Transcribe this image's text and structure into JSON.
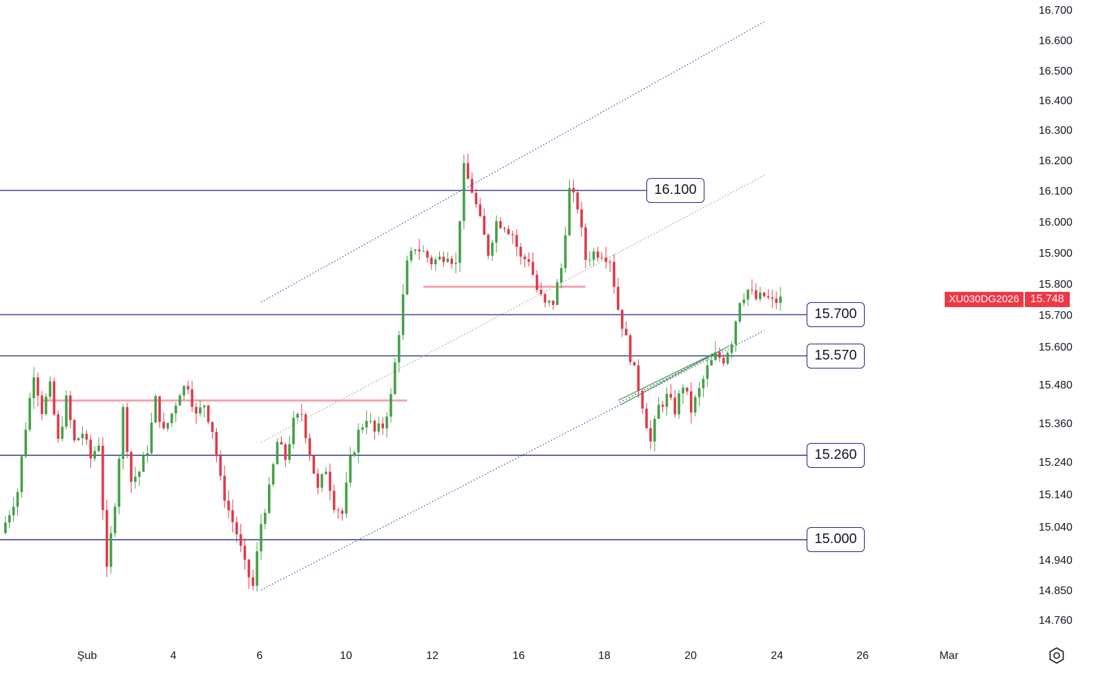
{
  "chart_data": {
    "type": "candlestick",
    "symbol": "XU030DG2026",
    "last_price": "15.748",
    "y_axis": {
      "ticks": [
        "16.700",
        "16.600",
        "16.500",
        "16.400",
        "16.300",
        "16.200",
        "16.100",
        "16.000",
        "15.900",
        "15.800",
        "15.700",
        "15.600",
        "15.480",
        "15.360",
        "15.240",
        "15.140",
        "15.040",
        "14.940",
        "14.850",
        "14.760"
      ]
    },
    "x_axis": {
      "ticks": [
        "Şub",
        "4",
        "6",
        "10",
        "12",
        "16",
        "18",
        "20",
        "24",
        "26",
        "Mar"
      ]
    },
    "levels": [
      {
        "label": "16.100",
        "value": 16100
      },
      {
        "label": "15.700",
        "value": 15700
      },
      {
        "label": "15.570",
        "value": 15570
      },
      {
        "label": "15.260",
        "value": 15260
      },
      {
        "label": "15.000",
        "value": 15000
      }
    ],
    "price_path": [
      [
        0,
        15020
      ],
      [
        2,
        15150
      ],
      [
        3,
        15350
      ],
      [
        4,
        15520
      ],
      [
        5,
        15400
      ],
      [
        6,
        15470
      ],
      [
        7,
        15300
      ],
      [
        8,
        15430
      ],
      [
        9,
        15300
      ],
      [
        10,
        15330
      ],
      [
        11,
        15250
      ],
      [
        12,
        15300
      ],
      [
        13,
        14900
      ],
      [
        14,
        15120
      ],
      [
        15,
        15400
      ],
      [
        16,
        15180
      ],
      [
        17,
        15210
      ],
      [
        18,
        15280
      ],
      [
        19,
        15430
      ],
      [
        20,
        15330
      ],
      [
        21,
        15390
      ],
      [
        22,
        15460
      ],
      [
        23,
        15480
      ],
      [
        24,
        15380
      ],
      [
        25,
        15420
      ],
      [
        26,
        15340
      ],
      [
        27,
        15180
      ],
      [
        28,
        15090
      ],
      [
        29,
        15020
      ],
      [
        30,
        14920
      ],
      [
        31,
        14860
      ],
      [
        32,
        15050
      ],
      [
        33,
        15150
      ],
      [
        34,
        15300
      ],
      [
        35,
        15250
      ],
      [
        36,
        15360
      ],
      [
        37,
        15390
      ],
      [
        38,
        15270
      ],
      [
        39,
        15150
      ],
      [
        40,
        15220
      ],
      [
        41,
        15110
      ],
      [
        42,
        15080
      ],
      [
        43,
        15240
      ],
      [
        44,
        15330
      ],
      [
        45,
        15380
      ],
      [
        46,
        15330
      ],
      [
        47,
        15350
      ],
      [
        48,
        15440
      ],
      [
        49,
        15650
      ],
      [
        50,
        15860
      ],
      [
        51,
        15920
      ],
      [
        52,
        15900
      ],
      [
        53,
        15870
      ],
      [
        54,
        15880
      ],
      [
        55,
        15900
      ],
      [
        56,
        15860
      ],
      [
        57,
        16170
      ],
      [
        58,
        16100
      ],
      [
        59,
        16000
      ],
      [
        60,
        15900
      ],
      [
        61,
        16000
      ],
      [
        62,
        15990
      ],
      [
        63,
        15960
      ],
      [
        64,
        15880
      ],
      [
        65,
        15880
      ],
      [
        66,
        15780
      ],
      [
        67,
        15730
      ],
      [
        68,
        15740
      ],
      [
        69,
        15850
      ],
      [
        70,
        16100
      ],
      [
        71,
        16050
      ],
      [
        72,
        15880
      ],
      [
        73,
        15900
      ],
      [
        74,
        15900
      ],
      [
        75,
        15880
      ],
      [
        76,
        15720
      ],
      [
        77,
        15620
      ],
      [
        78,
        15520
      ],
      [
        79,
        15420
      ],
      [
        80,
        15300
      ],
      [
        81,
        15410
      ],
      [
        82,
        15440
      ],
      [
        83,
        15400
      ],
      [
        84,
        15480
      ],
      [
        85,
        15400
      ],
      [
        86,
        15460
      ],
      [
        87,
        15530
      ],
      [
        88,
        15570
      ],
      [
        89,
        15560
      ],
      [
        90,
        15620
      ],
      [
        91,
        15750
      ],
      [
        92,
        15780
      ],
      [
        93,
        15750
      ],
      [
        94,
        15760
      ],
      [
        95,
        15740
      ],
      [
        96,
        15748
      ]
    ],
    "annotations": [
      {
        "kind": "channel-upper",
        "from": {
          "x": 32,
          "y": 15740
        },
        "to": {
          "x": 94,
          "y": 16660
        }
      },
      {
        "kind": "channel-mid",
        "from": {
          "x": 32,
          "y": 15300
        },
        "to": {
          "x": 94,
          "y": 16150
        }
      },
      {
        "kind": "channel-lower",
        "from": {
          "x": 32,
          "y": 14850
        },
        "to": {
          "x": 94,
          "y": 15650
        }
      },
      {
        "kind": "zone",
        "from": {
          "x": 5,
          "y": 15430
        },
        "to": {
          "x": 50,
          "y": 15430
        }
      },
      {
        "kind": "zone",
        "from": {
          "x": 52,
          "y": 15790
        },
        "to": {
          "x": 72,
          "y": 15790
        }
      },
      {
        "kind": "wedge",
        "from": {
          "x": 76,
          "y": 15430
        },
        "to": {
          "x": 88,
          "y": 15580
        }
      }
    ]
  },
  "colors": {
    "up": "#43a047",
    "down": "#e0394a",
    "level_line": "#1a237e",
    "channel": "#3949ab",
    "channel_mid": "#9e9e9e",
    "zone": "#f4a5ad",
    "wedge": "#43a047"
  },
  "ui": {
    "settings_icon": "gear-icon"
  }
}
